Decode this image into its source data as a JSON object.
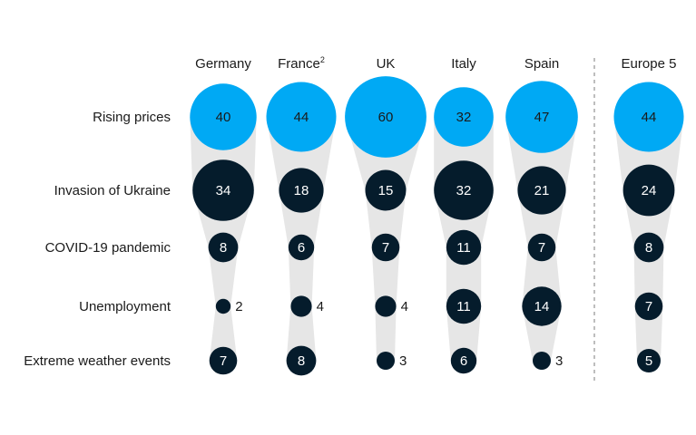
{
  "colors": {
    "accent": "#00a9f4",
    "dark": "#051c2c",
    "funnel": "#e6e6e6",
    "divider": "#9a9a9a",
    "text": "#1a1a1a"
  },
  "chart_data": {
    "type": "bubble-matrix",
    "columns": [
      {
        "label": "Germany",
        "sup": ""
      },
      {
        "label": "France",
        "sup": "2"
      },
      {
        "label": "UK",
        "sup": ""
      },
      {
        "label": "Italy",
        "sup": ""
      },
      {
        "label": "Spain",
        "sup": ""
      },
      {
        "label": "Europe 5",
        "sup": ""
      }
    ],
    "rows": [
      "Rising prices",
      "Invasion of Ukraine",
      "COVID-19 pandemic",
      "Unemployment",
      "Extreme weather events"
    ],
    "values": [
      [
        40,
        44,
        60,
        32,
        47,
        44
      ],
      [
        34,
        18,
        15,
        32,
        21,
        24
      ],
      [
        8,
        6,
        7,
        11,
        7,
        8
      ],
      [
        2,
        4,
        4,
        11,
        14,
        7
      ],
      [
        7,
        8,
        3,
        6,
        3,
        5
      ]
    ],
    "highlight_row": 0
  }
}
